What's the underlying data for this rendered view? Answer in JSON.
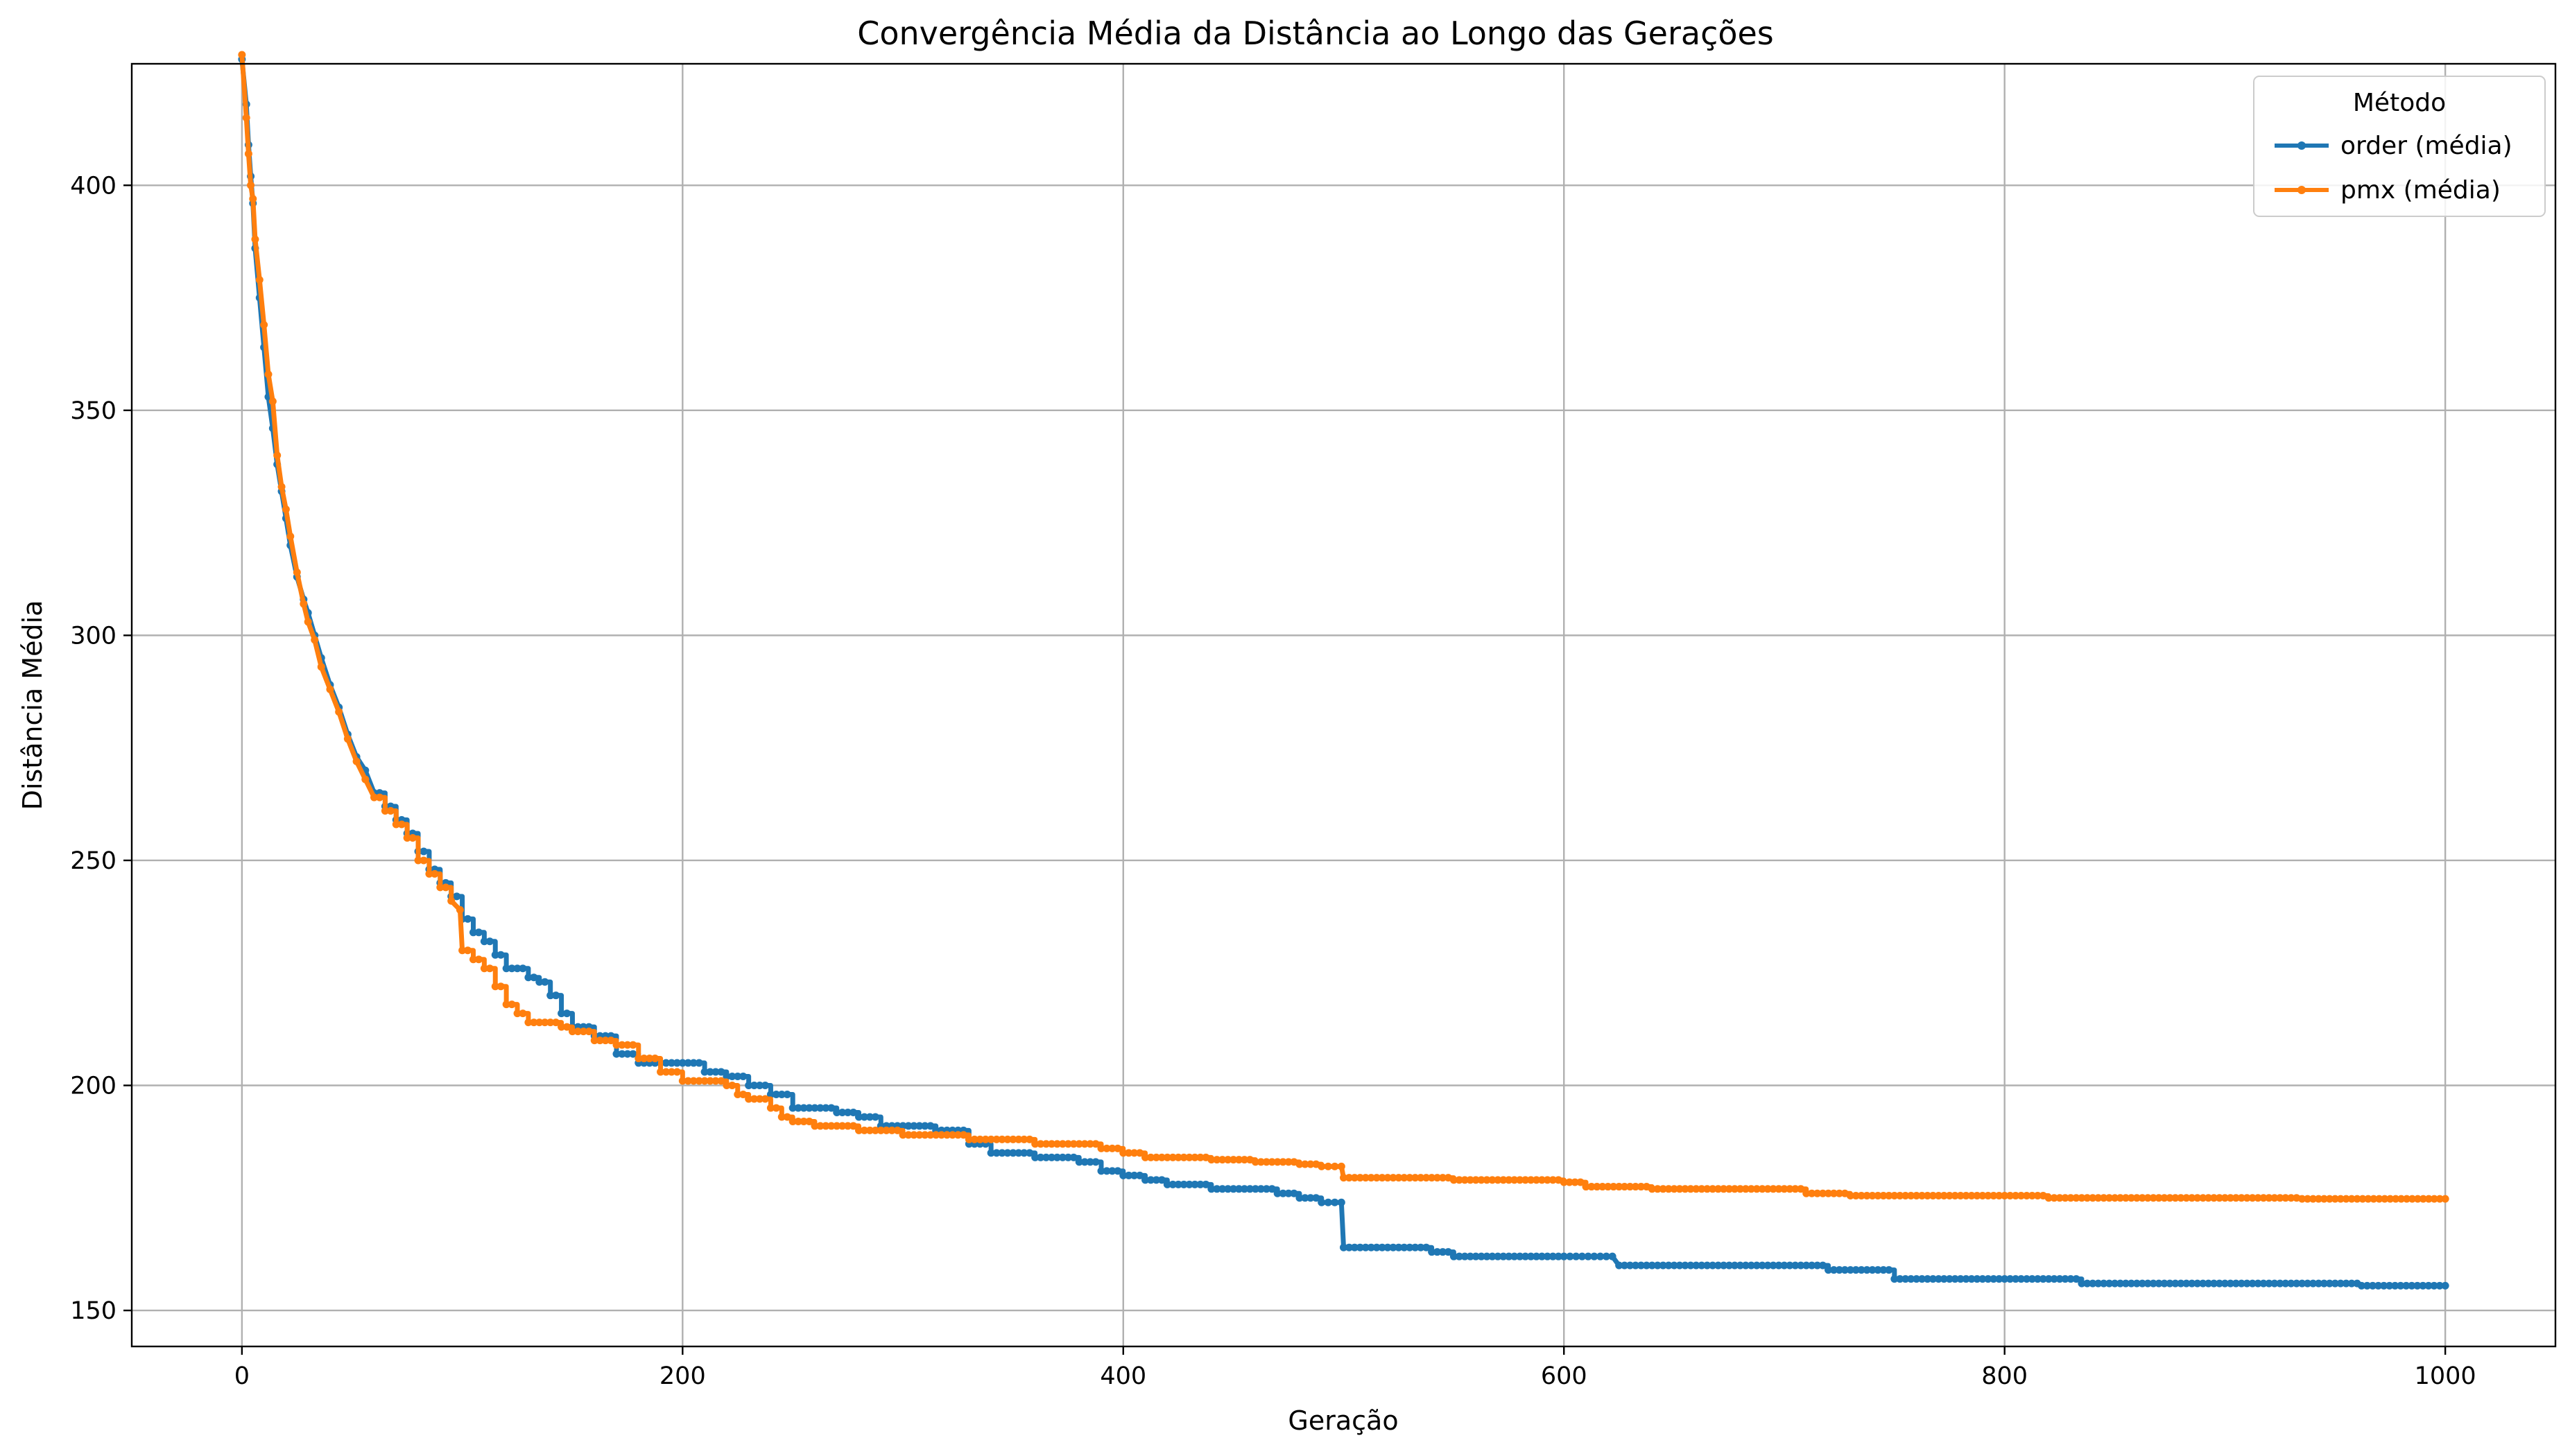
{
  "chart_data": {
    "type": "line",
    "title": "Convergência Média da Distância ao Longo das Gerações",
    "xlabel": "Geração",
    "ylabel": "Distância Média",
    "xlim": [
      -50,
      1050
    ],
    "ylim": [
      142,
      427
    ],
    "xticks": [
      0,
      200,
      400,
      600,
      800,
      1000
    ],
    "yticks": [
      150,
      200,
      250,
      300,
      350,
      400
    ],
    "grid": true,
    "legend": {
      "title": "Método",
      "placement": "top-right"
    },
    "series": [
      {
        "name": "order (média)",
        "color": "#1f77b4",
        "points": [
          [
            0,
            428
          ],
          [
            2,
            418
          ],
          [
            3,
            409
          ],
          [
            4,
            402
          ],
          [
            5,
            396
          ],
          [
            6,
            386
          ],
          [
            8,
            375
          ],
          [
            10,
            364
          ],
          [
            12,
            353
          ],
          [
            14,
            346
          ],
          [
            16,
            338
          ],
          [
            18,
            332
          ],
          [
            20,
            326
          ],
          [
            22,
            320
          ],
          [
            25,
            313
          ],
          [
            28,
            308
          ],
          [
            30,
            305
          ],
          [
            33,
            300
          ],
          [
            36,
            295
          ],
          [
            40,
            289
          ],
          [
            44,
            284
          ],
          [
            48,
            278
          ],
          [
            52,
            273
          ],
          [
            56,
            270
          ],
          [
            60,
            265
          ],
          [
            65,
            262
          ],
          [
            70,
            259
          ],
          [
            75,
            256
          ],
          [
            80,
            252
          ],
          [
            85,
            248
          ],
          [
            90,
            245
          ],
          [
            95,
            242
          ],
          [
            100,
            237
          ],
          [
            105,
            234
          ],
          [
            110,
            232
          ],
          [
            115,
            229
          ],
          [
            120,
            226
          ],
          [
            130,
            224
          ],
          [
            135,
            223
          ],
          [
            140,
            220
          ],
          [
            145,
            216
          ],
          [
            150,
            213
          ],
          [
            160,
            211
          ],
          [
            170,
            207
          ],
          [
            180,
            205
          ],
          [
            200,
            205
          ],
          [
            210,
            203
          ],
          [
            220,
            202
          ],
          [
            230,
            200
          ],
          [
            240,
            198
          ],
          [
            250,
            195
          ],
          [
            260,
            195
          ],
          [
            270,
            194
          ],
          [
            280,
            193
          ],
          [
            290,
            191
          ],
          [
            300,
            191
          ],
          [
            315,
            190
          ],
          [
            330,
            187
          ],
          [
            340,
            185
          ],
          [
            360,
            184
          ],
          [
            380,
            183
          ],
          [
            390,
            181
          ],
          [
            400,
            180
          ],
          [
            410,
            179
          ],
          [
            420,
            178
          ],
          [
            440,
            177
          ],
          [
            460,
            177
          ],
          [
            470,
            176
          ],
          [
            480,
            175
          ],
          [
            490,
            174
          ],
          [
            499,
            174
          ],
          [
            500,
            164
          ],
          [
            520,
            164
          ],
          [
            540,
            163
          ],
          [
            550,
            162
          ],
          [
            600,
            162
          ],
          [
            622,
            162
          ],
          [
            625,
            160
          ],
          [
            700,
            160
          ],
          [
            710,
            160
          ],
          [
            720,
            159
          ],
          [
            745,
            159
          ],
          [
            750,
            157
          ],
          [
            800,
            157
          ],
          [
            830,
            157
          ],
          [
            835,
            156
          ],
          [
            900,
            156
          ],
          [
            960,
            156
          ],
          [
            962,
            155.5
          ],
          [
            1000,
            155.5
          ]
        ]
      },
      {
        "name": "pmx (média)",
        "color": "#ff7f0e",
        "points": [
          [
            0,
            429
          ],
          [
            2,
            415
          ],
          [
            3,
            407
          ],
          [
            4,
            400
          ],
          [
            5,
            397
          ],
          [
            6,
            388
          ],
          [
            8,
            379
          ],
          [
            10,
            369
          ],
          [
            12,
            358
          ],
          [
            14,
            352
          ],
          [
            16,
            340
          ],
          [
            18,
            333
          ],
          [
            20,
            328
          ],
          [
            22,
            322
          ],
          [
            25,
            314
          ],
          [
            28,
            307
          ],
          [
            30,
            303
          ],
          [
            33,
            299
          ],
          [
            36,
            293
          ],
          [
            40,
            288
          ],
          [
            44,
            283
          ],
          [
            48,
            277
          ],
          [
            52,
            272
          ],
          [
            56,
            268
          ],
          [
            60,
            264
          ],
          [
            65,
            261
          ],
          [
            70,
            258
          ],
          [
            75,
            255
          ],
          [
            80,
            250
          ],
          [
            85,
            247
          ],
          [
            90,
            244
          ],
          [
            95,
            241
          ],
          [
            99,
            239
          ],
          [
            100,
            230
          ],
          [
            105,
            228
          ],
          [
            110,
            226
          ],
          [
            115,
            222
          ],
          [
            120,
            218
          ],
          [
            125,
            216
          ],
          [
            130,
            214
          ],
          [
            140,
            214
          ],
          [
            145,
            213
          ],
          [
            150,
            212
          ],
          [
            160,
            210
          ],
          [
            170,
            209
          ],
          [
            180,
            206
          ],
          [
            190,
            203
          ],
          [
            200,
            201
          ],
          [
            210,
            201
          ],
          [
            220,
            200
          ],
          [
            225,
            198
          ],
          [
            230,
            197
          ],
          [
            240,
            195
          ],
          [
            245,
            193
          ],
          [
            250,
            192
          ],
          [
            260,
            191
          ],
          [
            280,
            190
          ],
          [
            300,
            189
          ],
          [
            330,
            188
          ],
          [
            350,
            188
          ],
          [
            360,
            187
          ],
          [
            390,
            186
          ],
          [
            400,
            185
          ],
          [
            410,
            184
          ],
          [
            440,
            183.5
          ],
          [
            460,
            183
          ],
          [
            480,
            182.5
          ],
          [
            490,
            182
          ],
          [
            499,
            182
          ],
          [
            500,
            179.5
          ],
          [
            550,
            179
          ],
          [
            600,
            178.5
          ],
          [
            610,
            177.5
          ],
          [
            640,
            177
          ],
          [
            700,
            177
          ],
          [
            710,
            176
          ],
          [
            730,
            175.5
          ],
          [
            800,
            175.5
          ],
          [
            820,
            175
          ],
          [
            930,
            175
          ],
          [
            935,
            174.8
          ],
          [
            1000,
            174.8
          ]
        ]
      }
    ]
  }
}
